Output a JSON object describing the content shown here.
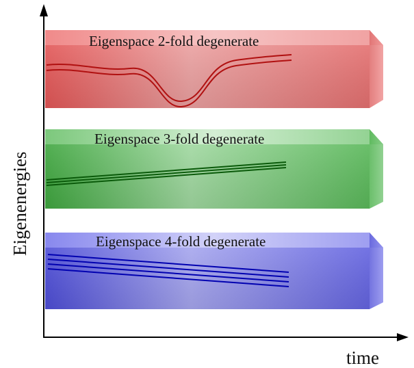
{
  "axes": {
    "y_label": "Eigenenergies",
    "x_label": "time"
  },
  "eigenspaces": [
    {
      "label": "Eigenspace 2-fold degenerate",
      "degeneracy": 2,
      "color": "#e05a5a",
      "line_color": "#b01010"
    },
    {
      "label": "Eigenspace 3-fold degenerate",
      "degeneracy": 3,
      "color": "#4caf4c",
      "line_color": "#0a5a0a"
    },
    {
      "label": "Eigenspace 4-fold degenerate",
      "degeneracy": 4,
      "color": "#5a5ae0",
      "line_color": "#0000b0"
    }
  ]
}
